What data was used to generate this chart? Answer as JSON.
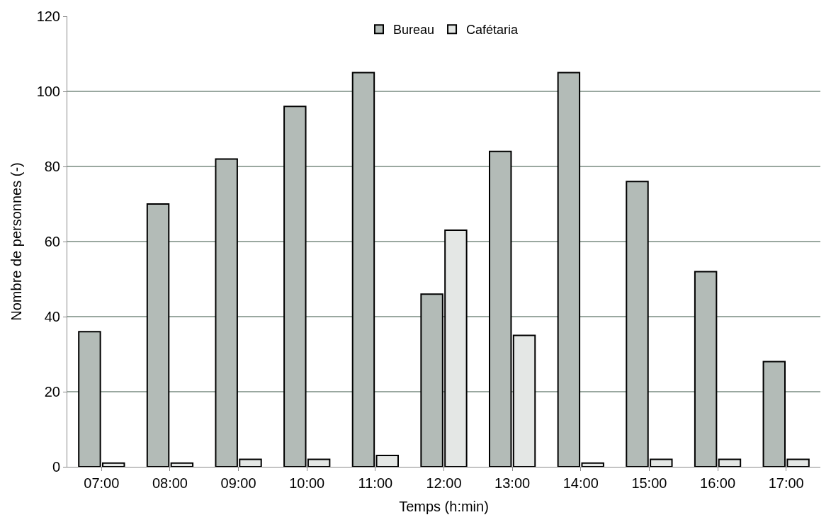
{
  "chart_data": {
    "type": "bar",
    "xlabel": "Temps (h:min)",
    "ylabel": "Nombre de personnes (-)",
    "categories": [
      "07:00",
      "08:00",
      "09:00",
      "10:00",
      "11:00",
      "12:00",
      "13:00",
      "14:00",
      "15:00",
      "16:00",
      "17:00"
    ],
    "series": [
      {
        "name": "Bureau",
        "color": "#b3bbb7",
        "values": [
          36,
          70,
          82,
          96,
          105,
          46,
          84,
          105,
          76,
          52,
          28
        ]
      },
      {
        "name": "Cafétaria",
        "color": "#e4e7e5",
        "values": [
          1,
          1,
          2,
          2,
          3,
          63,
          35,
          1,
          2,
          2,
          2
        ]
      }
    ],
    "ylim": [
      0,
      120
    ],
    "yticks": [
      0,
      20,
      40,
      60,
      80,
      100,
      120
    ],
    "grid": "y",
    "legend": "top"
  }
}
